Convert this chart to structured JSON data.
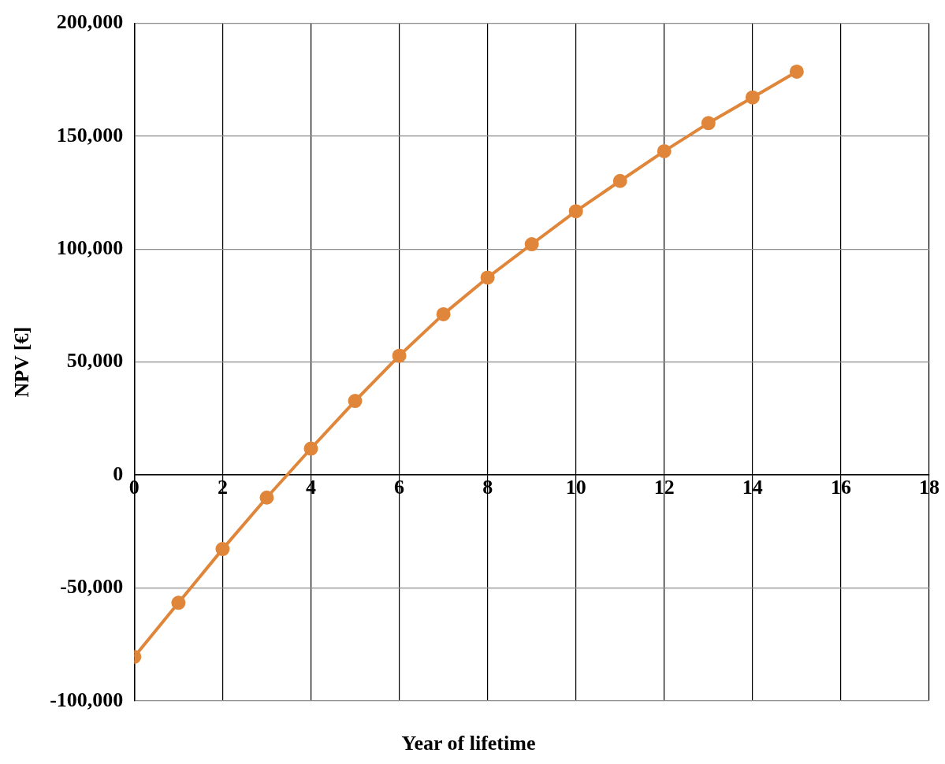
{
  "chart_data": {
    "type": "line",
    "xlabel": "Year of lifetime",
    "ylabel": "NPV [€]",
    "x": [
      0,
      1,
      2,
      3,
      4,
      5,
      6,
      7,
      8,
      9,
      10,
      11,
      12,
      13,
      14,
      15
    ],
    "series": [
      {
        "color": "#e0863a",
        "values": [
          -80500,
          -56600,
          -32800,
          -10000,
          11700,
          32800,
          52800,
          71200,
          87400,
          102200,
          116800,
          130200,
          143400,
          155800,
          167200,
          178600
        ]
      }
    ],
    "xlim": [
      0,
      18
    ],
    "xticks": [
      0,
      2,
      4,
      6,
      8,
      10,
      12,
      14,
      16,
      18
    ],
    "ylim": [
      -100000,
      200000
    ],
    "yticks": [
      {
        "value": -100000,
        "label": "-100,000"
      },
      {
        "value": -50000,
        "label": "-50,000"
      },
      0,
      {
        "value": 50000,
        "label": "50,000"
      },
      {
        "value": 100000,
        "label": "100,000"
      },
      {
        "value": 150000,
        "label": "150,000"
      },
      {
        "value": 200000,
        "label": "200,000"
      }
    ],
    "grid": true,
    "legend": false,
    "marker": "circle",
    "line_style": "solid"
  }
}
